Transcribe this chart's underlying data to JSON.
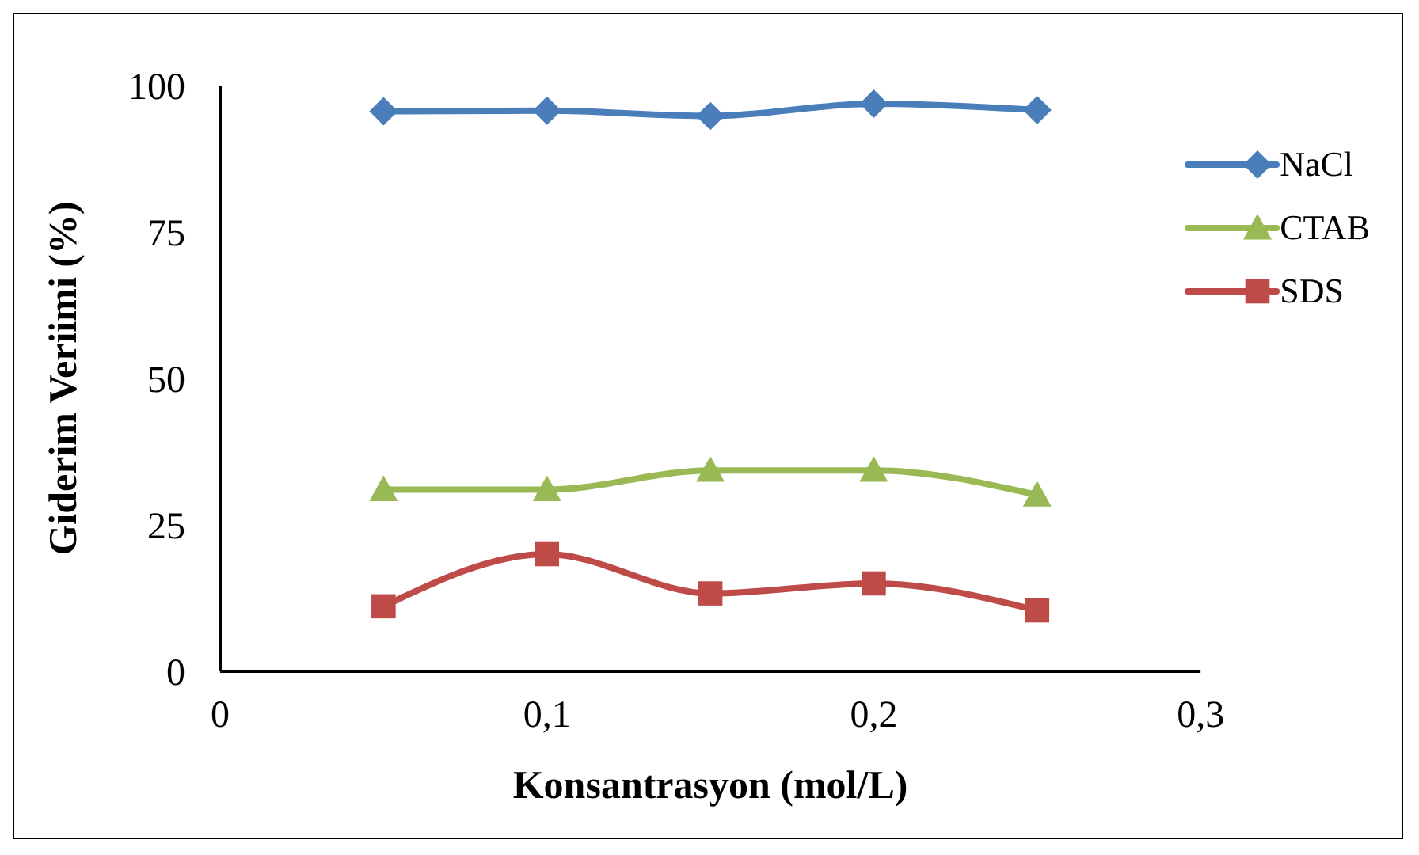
{
  "chart_data": {
    "type": "line",
    "xlabel": "Konsantrasyon (mol/L)",
    "ylabel": "Giderim Veriimi (%)",
    "x": [
      0.05,
      0.1,
      0.15,
      0.2,
      0.25
    ],
    "series": [
      {
        "name": "NaCl",
        "color": "#4a7ebb",
        "marker": "diamond",
        "values": [
          95.6,
          95.7,
          94.8,
          96.9,
          95.8
        ]
      },
      {
        "name": "CTAB",
        "color": "#98b954",
        "marker": "triangle",
        "values": [
          31,
          31,
          34.3,
          34.3,
          30.1
        ]
      },
      {
        "name": "SDS",
        "color": "#be4b48",
        "marker": "square",
        "values": [
          11.1,
          20,
          13.3,
          15,
          10.4
        ]
      }
    ],
    "xlim": [
      0,
      0.3
    ],
    "xticks": [
      0,
      {
        "value": 0.1,
        "label": "0,1"
      },
      {
        "value": 0.2,
        "label": "0,2"
      },
      {
        "value": 0.3,
        "label": "0,3"
      }
    ],
    "ylim": [
      0,
      100
    ],
    "yticks": [
      0,
      25,
      50,
      75,
      100
    ],
    "grid": false,
    "legend": "right"
  }
}
